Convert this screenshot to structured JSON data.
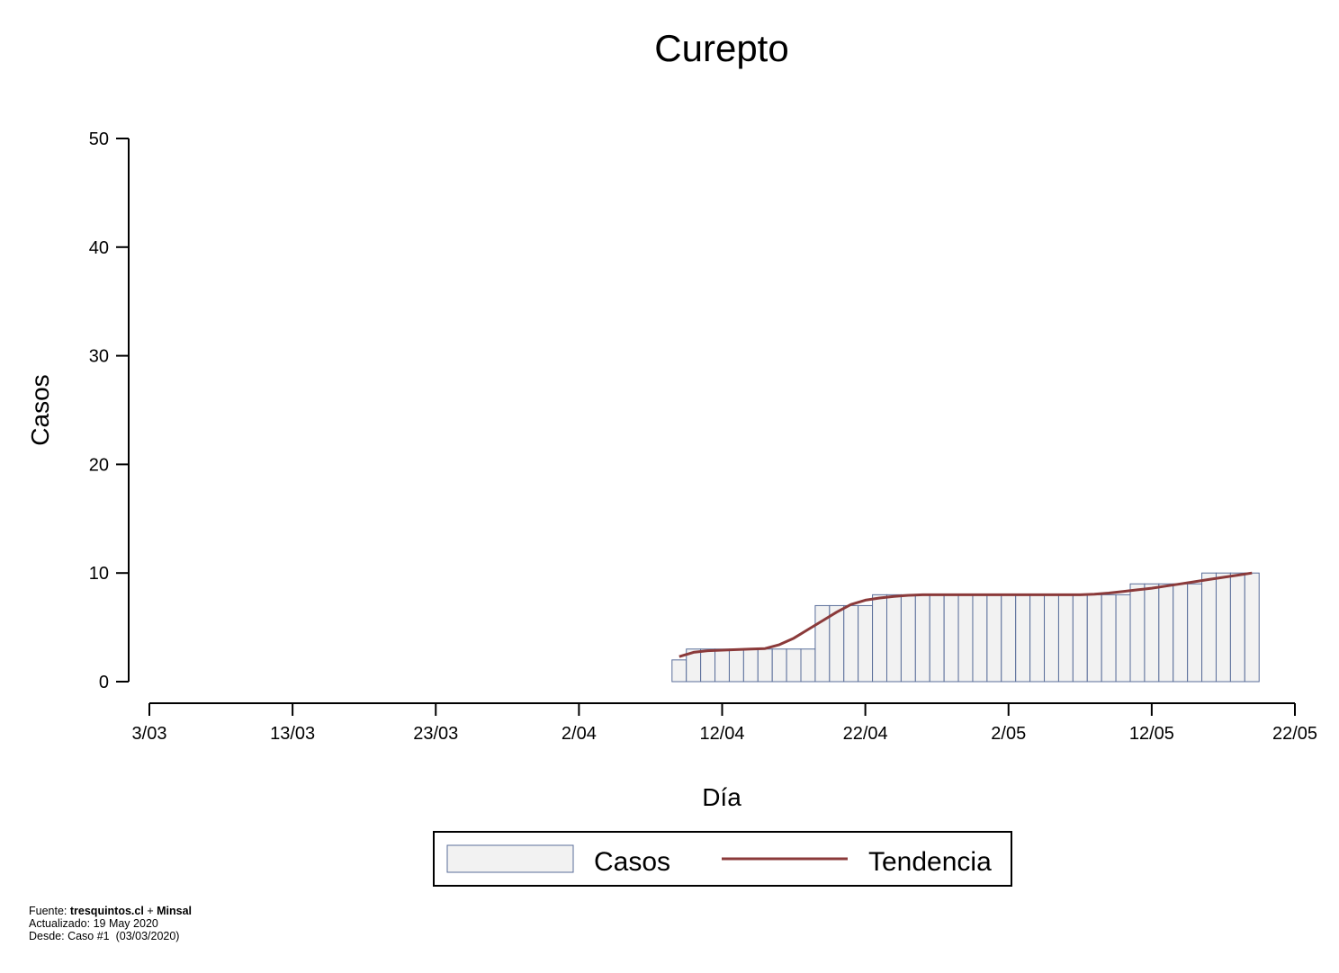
{
  "chart_data": {
    "type": "bar",
    "title": "Curepto",
    "xlabel": "Día",
    "ylabel": "Casos",
    "ylim": [
      0,
      50
    ],
    "yticks": [
      0,
      10,
      20,
      30,
      40,
      50
    ],
    "xaxis": {
      "start_date": "2020-03-03",
      "end_date": "2020-05-22",
      "tick_labels": [
        "3/03",
        "13/03",
        "23/03",
        "2/04",
        "12/04",
        "22/04",
        "2/05",
        "12/05",
        "22/05"
      ]
    },
    "grid": false,
    "legend_position": "bottom",
    "colors": {
      "bar_fill": "#f2f2f2",
      "bar_stroke": "#5a6e9a",
      "trend": "#8b3a3a"
    },
    "series": [
      {
        "name": "Casos",
        "x": [
          "2020-04-09",
          "2020-04-10",
          "2020-04-11",
          "2020-04-12",
          "2020-04-13",
          "2020-04-14",
          "2020-04-15",
          "2020-04-16",
          "2020-04-17",
          "2020-04-18",
          "2020-04-19",
          "2020-04-20",
          "2020-04-21",
          "2020-04-22",
          "2020-04-23",
          "2020-04-24",
          "2020-04-25",
          "2020-04-26",
          "2020-04-27",
          "2020-04-28",
          "2020-04-29",
          "2020-04-30",
          "2020-05-01",
          "2020-05-02",
          "2020-05-03",
          "2020-05-04",
          "2020-05-05",
          "2020-05-06",
          "2020-05-07",
          "2020-05-08",
          "2020-05-09",
          "2020-05-10",
          "2020-05-11",
          "2020-05-12",
          "2020-05-13",
          "2020-05-14",
          "2020-05-15",
          "2020-05-16",
          "2020-05-17",
          "2020-05-18",
          "2020-05-19"
        ],
        "values": [
          2,
          3,
          3,
          3,
          3,
          3,
          3,
          3,
          3,
          3,
          7,
          7,
          7,
          7,
          8,
          8,
          8,
          8,
          8,
          8,
          8,
          8,
          8,
          8,
          8,
          8,
          8,
          8,
          8,
          8,
          8,
          8,
          9,
          9,
          9,
          9,
          9,
          10,
          10,
          10,
          10
        ]
      },
      {
        "name": "Tendencia",
        "x": [
          "2020-04-09",
          "2020-04-10",
          "2020-04-11",
          "2020-04-12",
          "2020-04-13",
          "2020-04-14",
          "2020-04-15",
          "2020-04-16",
          "2020-04-17",
          "2020-04-18",
          "2020-04-19",
          "2020-04-20",
          "2020-04-21",
          "2020-04-22",
          "2020-04-23",
          "2020-04-24",
          "2020-04-25",
          "2020-04-26",
          "2020-04-27",
          "2020-04-28",
          "2020-04-29",
          "2020-04-30",
          "2020-05-01",
          "2020-05-02",
          "2020-05-03",
          "2020-05-04",
          "2020-05-05",
          "2020-05-06",
          "2020-05-07",
          "2020-05-08",
          "2020-05-09",
          "2020-05-10",
          "2020-05-11",
          "2020-05-12",
          "2020-05-13",
          "2020-05-14",
          "2020-05-15",
          "2020-05-16",
          "2020-05-17",
          "2020-05-18",
          "2020-05-19"
        ],
        "values": [
          2.3,
          2.7,
          2.85,
          2.9,
          2.95,
          3.0,
          3.05,
          3.4,
          4.0,
          4.8,
          5.6,
          6.4,
          7.1,
          7.5,
          7.7,
          7.85,
          7.95,
          8.0,
          8.0,
          8.0,
          8.0,
          8.0,
          8.0,
          8.0,
          8.0,
          8.0,
          8.0,
          8.0,
          8.0,
          8.05,
          8.15,
          8.3,
          8.45,
          8.6,
          8.8,
          9.0,
          9.2,
          9.4,
          9.6,
          9.8,
          10.0
        ]
      }
    ]
  },
  "legend": {
    "items": [
      "Casos",
      "Tendencia"
    ]
  },
  "footer": {
    "source_prefix": "Fuente: ",
    "source_site": "tresquintos.cl",
    "source_join": " + ",
    "source_org": "Minsal",
    "updated": "Actualizado: 19 May 2020",
    "since": "Desde: Caso #1  (03/03/2020)"
  }
}
